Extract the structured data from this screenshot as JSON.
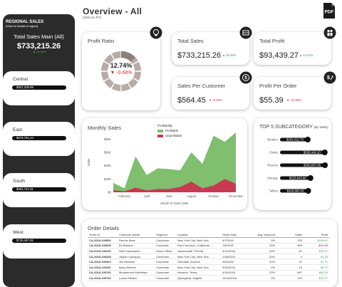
{
  "header": {
    "title": "Overview - All",
    "subtitle": "(2021 vs. PY)"
  },
  "sidebar": {
    "title": "REGIONAL SALES",
    "subtitle": "(Click to isolate a region)",
    "total_label": "Total Sales Main (All)",
    "total_value": "$733,215.26",
    "total_badge": "▲ 20.36%",
    "regions": [
      {
        "name": "Central",
        "value": "$501,239.89"
      },
      {
        "name": "East",
        "value": "$678,781.24"
      },
      {
        "name": "South",
        "value": "$391,721.91"
      },
      {
        "name": "West",
        "value": "$725,457.82"
      }
    ]
  },
  "profit_ratio": {
    "title": "Profit Ratio",
    "value": "12.74%",
    "change": "▼ -0.68%",
    "ratio": 0.1274
  },
  "kpis": {
    "total_sales": {
      "title": "Total Sales",
      "value": "$733,215.26",
      "badge": "▲ 20.36%"
    },
    "total_profit": {
      "title": "Total Profit",
      "value": "$93,439.27",
      "badge": "▲ 14.24%"
    },
    "sales_per_customer": {
      "title": "Sales Per Customer",
      "value": "$564.45",
      "badge": "▼ -0.03%"
    },
    "profit_per_order": {
      "title": "Profit Per Order",
      "value": "$55.39",
      "badge": "▼ -10.95%"
    }
  },
  "monthly_sales": {
    "title": "Monthly Sales",
    "legend_title": "Profitability",
    "legend": [
      "Profitable",
      "Unprofitable"
    ],
    "colors": {
      "profitable": "#7fbf6e",
      "unprofitable": "#c73a52"
    }
  },
  "subcategory": {
    "title": "TOP 5 SUBCATEGORY",
    "subtitle": "(By Sales)"
  },
  "chart_data": [
    {
      "type": "area",
      "title": "Monthly Sales",
      "xlabel": "Month of Order Date",
      "ylabel": "Sales",
      "x": [
        "January",
        "February",
        "March",
        "April",
        "May",
        "June",
        "July",
        "August",
        "September",
        "October",
        "November",
        "December"
      ],
      "x_tick_labels": [
        "February",
        "April",
        "June",
        "August",
        "October",
        "December"
      ],
      "y_ticks": [
        "$0",
        "$20K",
        "$40K",
        "$60K",
        "$80K"
      ],
      "ylim": [
        0,
        90000
      ],
      "series": [
        {
          "name": "Profitable",
          "values": [
            14000,
            6000,
            54000,
            26000,
            36000,
            35000,
            33000,
            60000,
            43000,
            85000,
            76000,
            90000
          ]
        },
        {
          "name": "Unprofitable",
          "values": [
            3000,
            1500,
            7000,
            3000,
            5000,
            5000,
            8000,
            16000,
            6000,
            10000,
            20000,
            13000
          ]
        }
      ]
    },
    {
      "type": "bar",
      "title": "TOP 5 SUBCATEGORY",
      "subtitle": "(By Sales)",
      "categories": [
        "Binders",
        "Chairs",
        "Phones",
        "Storage",
        "Tables"
      ],
      "values": [
        203412.73,
        328449.1,
        330007.05,
        223843.6,
        206965.53
      ],
      "labels": [
        "$203,412.73",
        "$328,449.10",
        "$330,007.05",
        "$223,843.60",
        "$206,965.53"
      ],
      "xlim": [
        0,
        340000
      ]
    }
  ],
  "orders": {
    "title": "Order Details",
    "columns": [
      "Order ID",
      "Customer Name",
      "Segment",
      "Location",
      "Order Date",
      "Avg. Discount",
      "Sales",
      "Profit"
    ],
    "rows": [
      [
        "CA-2018-100006",
        "Dennis Kane",
        "Consumer",
        "New York City, New York",
        "9/7/2018",
        "0%",
        "378",
        "$109.61"
      ],
      [
        "CA-2018-100090",
        "Ed Braxton",
        "Corporate",
        "San Francisco, California",
        "7/8/2018",
        "20%",
        "699",
        "-$19.09"
      ],
      [
        "CA-2018-100293",
        "Neil Französisch",
        "Home Office",
        "Jacksonville, Florida",
        "3/14/2018",
        "20%",
        "91",
        "$31.97"
      ],
      [
        "CA-2018-100328",
        "Jasper Cacioppo",
        "Consumer",
        "New York City, New York",
        "1/28/2018",
        "20%",
        "4",
        "$1.33"
      ],
      [
        "CA-2018-100363",
        "Jim Mitchum",
        "Corporate",
        "Glendale, Arizona",
        "4/8/2018",
        "20%",
        "21",
        "$7.72"
      ],
      [
        "CA-2018-100391",
        "Barry Weirich",
        "Consumer",
        "New York City, New York",
        "5/25/2018",
        "0%",
        "15",
        "$6.72"
      ],
      [
        "CA-2018-100706",
        "Muhammed MacIntyre",
        "Consumer",
        "Houston, Texas",
        "4/16/2018",
        "23%",
        "697",
        "$65.19"
      ],
      [
        "CA-2018-100706",
        "Laurel Elliston",
        "Consumer",
        "Springfield, Virginia",
        "12/16/2018",
        "0%",
        "129",
        "$39.17"
      ]
    ]
  }
}
